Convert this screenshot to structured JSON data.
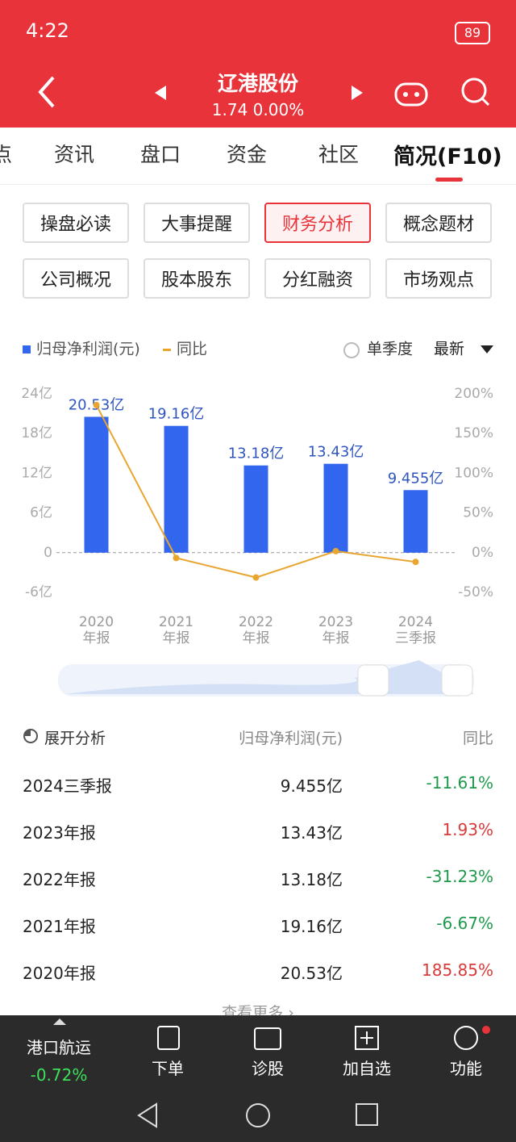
{
  "status_bar": {
    "time": "4:22",
    "battery": "89"
  },
  "header": {
    "title": "辽港股份",
    "subtitle": "1.74 0.00%"
  },
  "tabs": [
    "点",
    "资讯",
    "盘口",
    "资金",
    "社区",
    "简况(F10)"
  ],
  "buttons": [
    "操盘必读",
    "大事提醒",
    "财务分析",
    "概念题材",
    "公司概况",
    "股本股东",
    "分红融资",
    "市场观点"
  ],
  "chart_options": {
    "quarter": "单季度",
    "period": "最新"
  },
  "chart_data": {
    "type": "bar",
    "categories": [
      [
        "2020",
        "年报"
      ],
      [
        "2021",
        "年报"
      ],
      [
        "2022",
        "年报"
      ],
      [
        "2023",
        "年报"
      ],
      [
        "2024",
        "三季报"
      ]
    ],
    "series": [
      {
        "name": "归母净利润(元)",
        "color": "#3366ee",
        "type": "bar",
        "values": [
          20.53,
          19.16,
          13.18,
          13.43,
          9.455
        ],
        "value_labels": [
          "20.53亿",
          "19.16亿",
          "13.18亿",
          "13.43亿",
          "9.455亿"
        ]
      },
      {
        "name": "同比",
        "color": "#e8a530",
        "type": "line",
        "axis": "y2",
        "values": [
          185.85,
          -6.67,
          -31.23,
          1.93,
          -11.61
        ]
      }
    ],
    "ylim": [
      -6,
      24
    ],
    "yticks": [
      {
        "value": 24,
        "label": "24亿"
      },
      {
        "value": 18,
        "label": "18亿"
      },
      {
        "value": 12,
        "label": "12亿"
      },
      {
        "value": 6,
        "label": "6亿"
      },
      0,
      {
        "value": -6,
        "label": "-6亿"
      }
    ],
    "y2lim": [
      -50,
      200
    ],
    "y2ticks": [
      {
        "value": 200,
        "label": "200%"
      },
      {
        "value": 150,
        "label": "150%"
      },
      {
        "value": 100,
        "label": "100%"
      },
      {
        "value": 50,
        "label": "50%"
      },
      {
        "value": 0,
        "label": "0%"
      },
      {
        "value": -50,
        "label": "-50%"
      }
    ],
    "grid": false
  },
  "table": {
    "header": [
      "展开分析",
      "归母净利润(元)",
      "同比"
    ],
    "rows": [
      [
        "2024三季报",
        "9.455亿",
        "-11.61%"
      ],
      [
        "2023年报",
        "13.43亿",
        "1.93%"
      ],
      [
        "2022年报",
        "13.18亿",
        "-31.23%"
      ],
      [
        "2021年报",
        "19.16亿",
        "-6.67%"
      ],
      [
        "2020年报",
        "20.53亿",
        "185.85%"
      ]
    ],
    "more": "查看更多 ›"
  },
  "bottom_bar": {
    "sector": "港口航运",
    "sector_change": "-0.72%",
    "actions": [
      "下单",
      "诊股",
      "加自选",
      "功能"
    ]
  }
}
